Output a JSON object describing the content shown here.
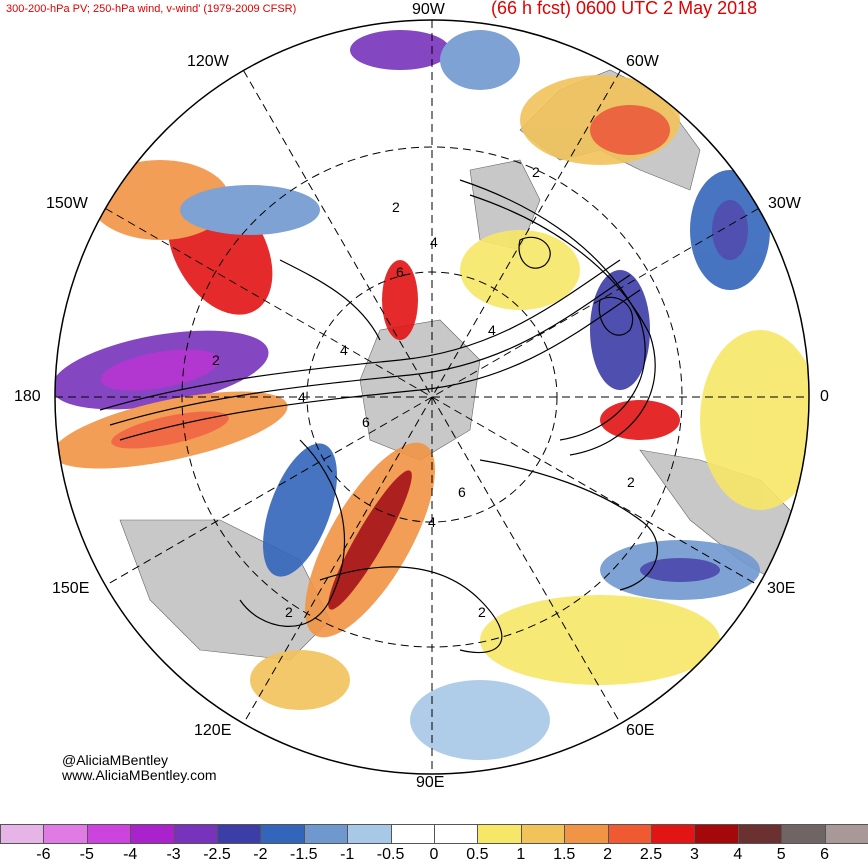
{
  "header": {
    "title_left": "300-200-hPa PV; 250-hPa wind, v-wind' (1979-2009 CFSR)",
    "title_right": "(66 h fcst) 0600 UTC 2 May 2018"
  },
  "map": {
    "projection": "north-polar-stereographic",
    "longitude_labels": [
      "90W",
      "120W",
      "60W",
      "150W",
      "30W",
      "180",
      "0",
      "150E",
      "30E",
      "120E",
      "60E",
      "90E"
    ],
    "contour_labels": [
      "2",
      "4",
      "2",
      "4",
      "6",
      "2",
      "4",
      "6",
      "4",
      "2",
      "2",
      "6",
      "4",
      "2"
    ],
    "colors": {
      "land": "#c8c8c8",
      "ocean": "#ffffff",
      "contour": "#000000",
      "gridline": "#000000"
    }
  },
  "colorbar": {
    "levels": [
      "-6",
      "-5",
      "-4",
      "-3",
      "-2.5",
      "-2",
      "-1.5",
      "-1",
      "-0.5",
      "0",
      "0.5",
      "1",
      "1.5",
      "2",
      "2.5",
      "3",
      "4",
      "5",
      "6"
    ],
    "colors": [
      "#e6b4e6",
      "#e07be6",
      "#cc44dd",
      "#aa22cc",
      "#7733bb",
      "#3d3da8",
      "#3366bb",
      "#6f98cf",
      "#a7c8e6",
      "#ffffff",
      "#ffffff",
      "#f7e768",
      "#f1c35a",
      "#f19445",
      "#f05a32",
      "#e21414",
      "#a50808",
      "#6b3030",
      "#6f6565",
      "#a89898"
    ]
  },
  "credit": {
    "handle": "@AliciaMBentley",
    "website": "www.AliciaMBentley.com"
  }
}
